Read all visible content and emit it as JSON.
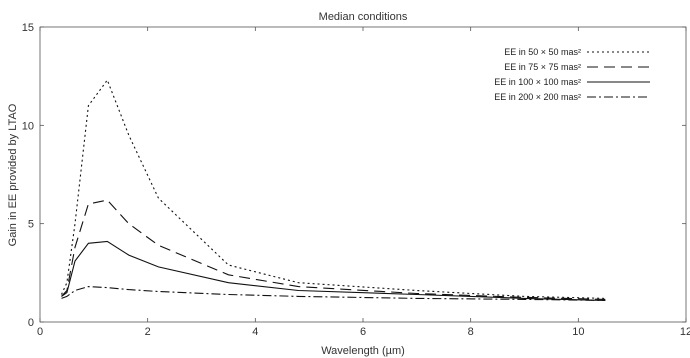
{
  "chart_data": {
    "type": "line",
    "title": "Median conditions",
    "xlabel": "Wavelength (µm)",
    "ylabel": "Gain in EE provided by LTAO",
    "xlim": [
      0,
      12
    ],
    "ylim": [
      0,
      15
    ],
    "xticks": [
      "0",
      "2",
      "4",
      "6",
      "8",
      "10",
      "12"
    ],
    "yticks": [
      "0",
      "5",
      "10",
      "15"
    ],
    "grid": false,
    "legend_position": "top-right",
    "series": [
      {
        "name": "EE in 50 × 50 mas²",
        "style": "dotted",
        "x": [
          0.4,
          0.5,
          0.65,
          0.9,
          1.25,
          1.65,
          2.2,
          3.5,
          4.8,
          7.0,
          9.0,
          10.5
        ],
        "y": [
          1.4,
          2.0,
          5.0,
          11.0,
          12.3,
          9.5,
          6.3,
          2.9,
          2.0,
          1.6,
          1.3,
          1.2
        ]
      },
      {
        "name": "EE in 75 × 75 mas²",
        "style": "dashed",
        "x": [
          0.4,
          0.5,
          0.65,
          0.9,
          1.25,
          1.65,
          2.2,
          3.5,
          4.8,
          7.0,
          9.0,
          10.5
        ],
        "y": [
          1.3,
          1.6,
          3.8,
          6.0,
          6.2,
          5.0,
          3.9,
          2.4,
          1.8,
          1.45,
          1.25,
          1.15
        ]
      },
      {
        "name": "EE in 100 × 100 mas²",
        "style": "solid",
        "x": [
          0.4,
          0.5,
          0.65,
          0.9,
          1.25,
          1.65,
          2.2,
          3.5,
          4.8,
          7.0,
          9.0,
          10.5
        ],
        "y": [
          1.3,
          1.5,
          3.1,
          4.0,
          4.1,
          3.4,
          2.8,
          2.0,
          1.6,
          1.4,
          1.2,
          1.1
        ]
      },
      {
        "name": "EE in 200 × 200 mas²",
        "style": "dash-dot",
        "x": [
          0.4,
          0.5,
          0.65,
          0.9,
          1.25,
          1.65,
          2.2,
          3.5,
          4.8,
          7.0,
          9.0,
          10.5
        ],
        "y": [
          1.2,
          1.3,
          1.6,
          1.8,
          1.75,
          1.65,
          1.55,
          1.4,
          1.3,
          1.2,
          1.15,
          1.1
        ]
      }
    ]
  }
}
